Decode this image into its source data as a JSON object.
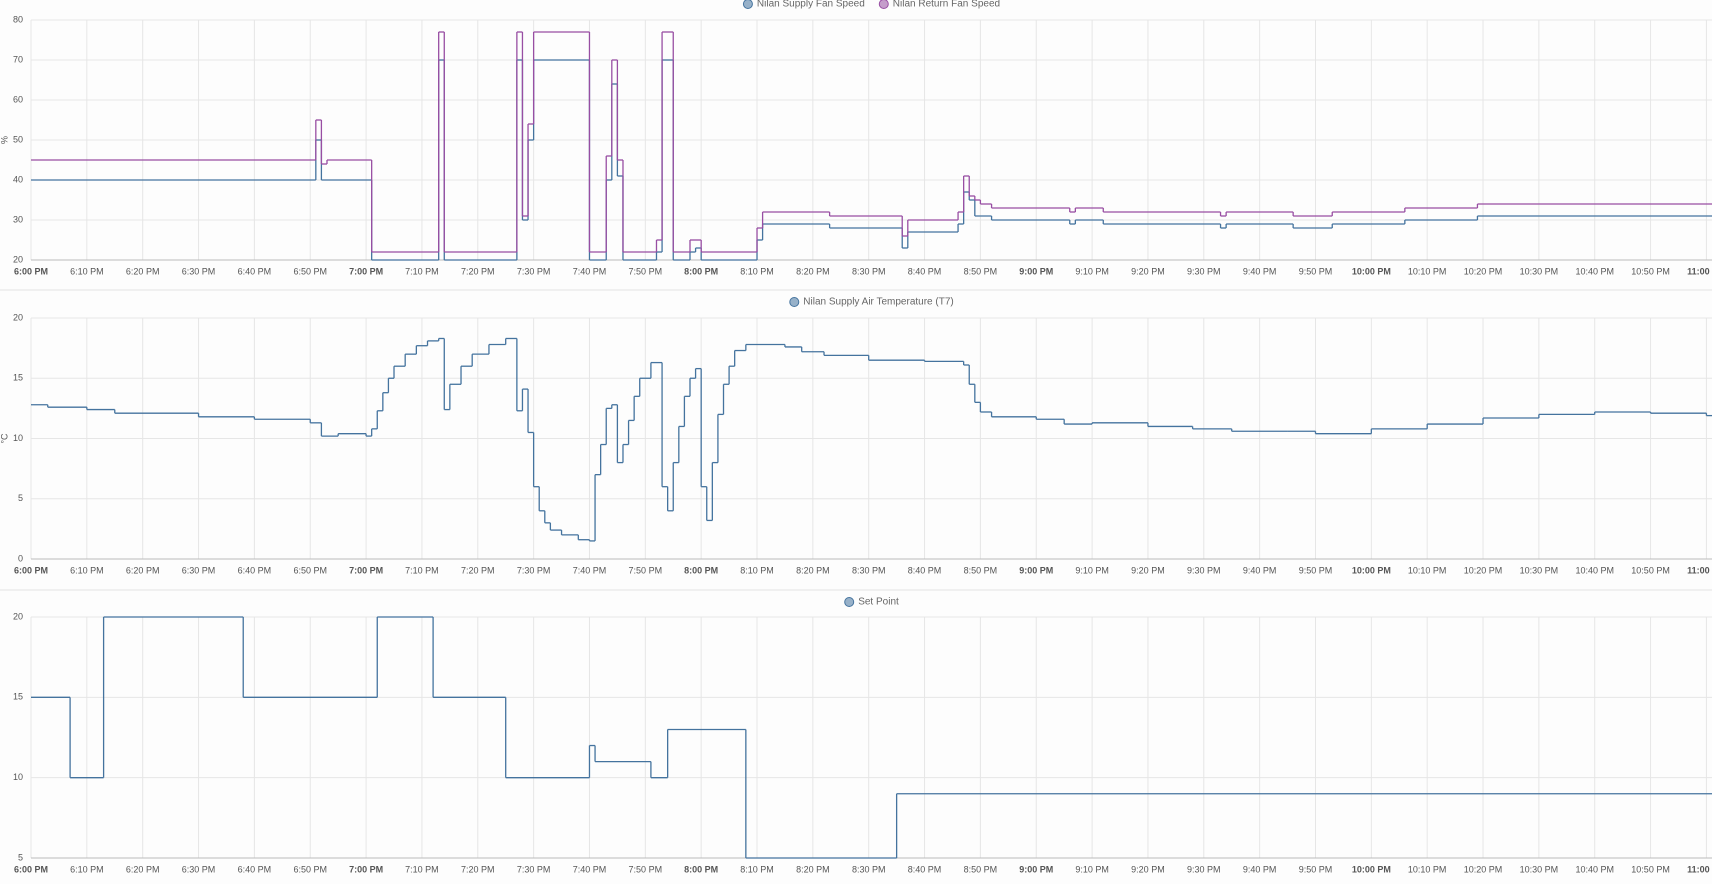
{
  "chart_data": [
    {
      "type": "line",
      "step": true,
      "grid": true,
      "ylabel": "%",
      "ylim": [
        20,
        80
      ],
      "yticks": [
        20,
        30,
        40,
        50,
        60,
        70,
        80
      ],
      "xlim": [
        "6:00 PM",
        "11:01 PM"
      ],
      "xticks": [
        "6:00 PM",
        "6:10 PM",
        "6:20 PM",
        "6:30 PM",
        "6:40 PM",
        "6:50 PM",
        "7:00 PM",
        "7:10 PM",
        "7:20 PM",
        "7:30 PM",
        "7:40 PM",
        "7:50 PM",
        "8:00 PM",
        "8:10 PM",
        "8:20 PM",
        "8:30 PM",
        "8:40 PM",
        "8:50 PM",
        "9:00 PM",
        "9:10 PM",
        "9:20 PM",
        "9:30 PM",
        "9:40 PM",
        "9:50 PM",
        "10:00 PM",
        "10:10 PM",
        "10:20 PM",
        "10:30 PM",
        "10:40 PM",
        "10:50 PM",
        "11:00 PM"
      ],
      "series": [
        {
          "name": "Nilan Supply Fan Speed",
          "color": "#44739e",
          "x": [
            "6:00 PM",
            "6:51 PM",
            "6:52 PM",
            "7:01 PM",
            "7:13 PM",
            "7:14 PM",
            "7:27 PM",
            "7:28 PM",
            "7:29 PM",
            "7:30 PM",
            "7:40 PM",
            "7:43 PM",
            "7:44 PM",
            "7:45 PM",
            "7:46 PM",
            "7:52 PM",
            "7:53 PM",
            "7:55 PM",
            "7:58 PM",
            "7:59 PM",
            "8:00 PM",
            "8:10 PM",
            "8:11 PM",
            "8:23 PM",
            "8:36 PM",
            "8:37 PM",
            "8:46 PM",
            "8:47 PM",
            "8:48 PM",
            "8:49 PM",
            "8:52 PM",
            "9:06 PM",
            "9:07 PM",
            "9:12 PM",
            "9:33 PM",
            "9:34 PM",
            "9:46 PM",
            "9:53 PM",
            "10:06 PM",
            "10:19 PM"
          ],
          "values": [
            40,
            50,
            40,
            20,
            70,
            20,
            70,
            30,
            50,
            70,
            20,
            40,
            64,
            41,
            20,
            22,
            70,
            20,
            22,
            23,
            20,
            25,
            29,
            28,
            23,
            27,
            29,
            37,
            35,
            31,
            30,
            29,
            30,
            29,
            28,
            29,
            28,
            29,
            30,
            31
          ]
        },
        {
          "name": "Nilan Return Fan Speed",
          "color": "#984ea3",
          "x": [
            "6:00 PM",
            "6:51 PM",
            "6:52 PM",
            "6:53 PM",
            "7:01 PM",
            "7:13 PM",
            "7:14 PM",
            "7:27 PM",
            "7:28 PM",
            "7:29 PM",
            "7:30 PM",
            "7:40 PM",
            "7:43 PM",
            "7:44 PM",
            "7:45 PM",
            "7:46 PM",
            "7:52 PM",
            "7:53 PM",
            "7:55 PM",
            "7:58 PM",
            "8:00 PM",
            "8:10 PM",
            "8:11 PM",
            "8:23 PM",
            "8:36 PM",
            "8:37 PM",
            "8:46 PM",
            "8:47 PM",
            "8:48 PM",
            "8:49 PM",
            "8:50 PM",
            "8:52 PM",
            "9:06 PM",
            "9:07 PM",
            "9:12 PM",
            "9:33 PM",
            "9:34 PM",
            "9:46 PM",
            "9:53 PM",
            "10:06 PM",
            "10:19 PM"
          ],
          "values": [
            45,
            55,
            44,
            45,
            22,
            77,
            22,
            77,
            31,
            54,
            77,
            22,
            46,
            70,
            45,
            22,
            25,
            77,
            22,
            25,
            22,
            28,
            32,
            31,
            26,
            30,
            32,
            41,
            36,
            35,
            34,
            33,
            32,
            33,
            32,
            31,
            32,
            31,
            32,
            33,
            34
          ]
        }
      ]
    },
    {
      "type": "line",
      "step": true,
      "grid": true,
      "ylabel": "°C",
      "ylim": [
        0,
        20
      ],
      "yticks": [
        0,
        5,
        10,
        15,
        20
      ],
      "xlim": [
        "6:00 PM",
        "11:01 PM"
      ],
      "xticks": [
        "6:00 PM",
        "6:10 PM",
        "6:20 PM",
        "6:30 PM",
        "6:40 PM",
        "6:50 PM",
        "7:00 PM",
        "7:10 PM",
        "7:20 PM",
        "7:30 PM",
        "7:40 PM",
        "7:50 PM",
        "8:00 PM",
        "8:10 PM",
        "8:20 PM",
        "8:30 PM",
        "8:40 PM",
        "8:50 PM",
        "9:00 PM",
        "9:10 PM",
        "9:20 PM",
        "9:30 PM",
        "9:40 PM",
        "9:50 PM",
        "10:00 PM",
        "10:10 PM",
        "10:20 PM",
        "10:30 PM",
        "10:40 PM",
        "10:50 PM",
        "11:00 PM"
      ],
      "series": [
        {
          "name": "Nilan Supply Air Temperature (T7)",
          "color": "#44739e",
          "x": [
            "6:00 PM",
            "6:03 PM",
            "6:10 PM",
            "6:15 PM",
            "6:30 PM",
            "6:40 PM",
            "6:50 PM",
            "6:52 PM",
            "6:55 PM",
            "7:00 PM",
            "7:01 PM",
            "7:02 PM",
            "7:03 PM",
            "7:04 PM",
            "7:05 PM",
            "7:07 PM",
            "7:09 PM",
            "7:11 PM",
            "7:13 PM",
            "7:14 PM",
            "7:15 PM",
            "7:17 PM",
            "7:19 PM",
            "7:22 PM",
            "7:25 PM",
            "7:27 PM",
            "7:28 PM",
            "7:29 PM",
            "7:30 PM",
            "7:31 PM",
            "7:32 PM",
            "7:33 PM",
            "7:35 PM",
            "7:38 PM",
            "7:40 PM",
            "7:41 PM",
            "7:42 PM",
            "7:43 PM",
            "7:44 PM",
            "7:45 PM",
            "7:46 PM",
            "7:47 PM",
            "7:48 PM",
            "7:49 PM",
            "7:51 PM",
            "7:53 PM",
            "7:54 PM",
            "7:55 PM",
            "7:56 PM",
            "7:57 PM",
            "7:58 PM",
            "7:59 PM",
            "8:00 PM",
            "8:01 PM",
            "8:02 PM",
            "8:03 PM",
            "8:04 PM",
            "8:05 PM",
            "8:06 PM",
            "8:08 PM",
            "8:15 PM",
            "8:18 PM",
            "8:22 PM",
            "8:30 PM",
            "8:40 PM",
            "8:47 PM",
            "8:48 PM",
            "8:49 PM",
            "8:50 PM",
            "8:52 PM",
            "9:00 PM",
            "9:05 PM",
            "9:10 PM",
            "9:20 PM",
            "9:28 PM",
            "9:35 PM",
            "9:45 PM",
            "9:50 PM",
            "10:00 PM",
            "10:10 PM",
            "10:20 PM",
            "10:30 PM",
            "10:40 PM",
            "10:50 PM",
            "11:00 PM"
          ],
          "values": [
            12.8,
            12.6,
            12.4,
            12.1,
            11.8,
            11.6,
            11.3,
            10.2,
            10.4,
            10.2,
            10.8,
            12.3,
            13.8,
            15,
            16,
            17,
            17.7,
            18.1,
            18.3,
            12.4,
            14.5,
            16,
            17,
            17.8,
            18.3,
            12.3,
            14.1,
            10.5,
            6,
            4,
            3,
            2.4,
            2,
            1.6,
            1.5,
            7,
            9.5,
            12.5,
            12.8,
            8,
            9.5,
            11.5,
            13.5,
            15,
            16.3,
            6,
            4,
            8,
            11,
            13.5,
            15,
            15.8,
            6,
            3.2,
            8,
            12,
            14.5,
            16,
            17.3,
            17.8,
            17.6,
            17.2,
            16.9,
            16.5,
            16.4,
            16.1,
            14.5,
            13,
            12.2,
            11.8,
            11.6,
            11.2,
            11.3,
            11,
            10.8,
            10.6,
            10.6,
            10.4,
            10.8,
            11.2,
            11.7,
            12,
            12.2,
            12.1,
            11.9
          ]
        }
      ]
    },
    {
      "type": "line",
      "step": true,
      "grid": true,
      "ylim": [
        5,
        20
      ],
      "yticks": [
        5,
        10,
        15,
        20
      ],
      "xlim": [
        "6:00 PM",
        "11:01 PM"
      ],
      "xticks": [
        "6:00 PM",
        "6:10 PM",
        "6:20 PM",
        "6:30 PM",
        "6:40 PM",
        "6:50 PM",
        "7:00 PM",
        "7:10 PM",
        "7:20 PM",
        "7:30 PM",
        "7:40 PM",
        "7:50 PM",
        "8:00 PM",
        "8:10 PM",
        "8:20 PM",
        "8:30 PM",
        "8:40 PM",
        "8:50 PM",
        "9:00 PM",
        "9:10 PM",
        "9:20 PM",
        "9:30 PM",
        "9:40 PM",
        "9:50 PM",
        "10:00 PM",
        "10:10 PM",
        "10:20 PM",
        "10:30 PM",
        "10:40 PM",
        "10:50 PM",
        "11:00 PM"
      ],
      "series": [
        {
          "name": "Set Point",
          "color": "#44739e",
          "x": [
            "6:00 PM",
            "6:07 PM",
            "6:13 PM",
            "6:38 PM",
            "7:02 PM",
            "7:12 PM",
            "7:25 PM",
            "7:40 PM",
            "7:41 PM",
            "7:51 PM",
            "7:54 PM",
            "8:08 PM",
            "8:35 PM"
          ],
          "values": [
            15,
            10,
            20,
            15,
            20,
            15,
            10,
            12,
            11,
            10,
            13,
            5,
            9
          ]
        }
      ]
    }
  ]
}
